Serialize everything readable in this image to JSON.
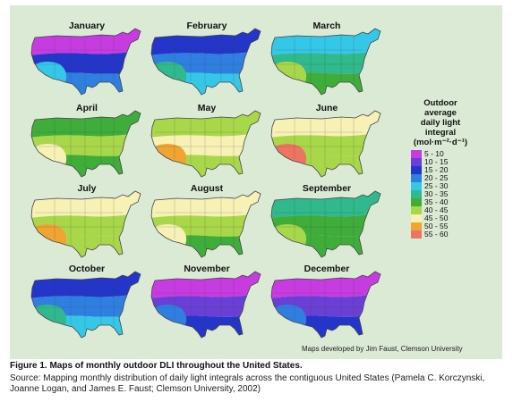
{
  "figure": {
    "label": "Figure 1.",
    "title": "Maps of monthly outdoor DLI throughout the United States.",
    "source": "Source: Mapping monthly distribution of daily light integrals across the contiguous United States (Pamela C. Korczynski, Joanne Logan, and James E. Faust; Clemson University, 2002)",
    "credit": "Maps developed by Jim Faust, Clemson University"
  },
  "legend": {
    "title_lines": [
      "Outdoor",
      "average",
      "daily light",
      "integral",
      "(mol·m⁻²·d⁻¹)"
    ],
    "classes": [
      {
        "range": "5 - 10",
        "color": "#c73ce0"
      },
      {
        "range": "10 - 15",
        "color": "#6a3fd6"
      },
      {
        "range": "15 - 20",
        "color": "#2436c9"
      },
      {
        "range": "20 - 25",
        "color": "#2f7fe0"
      },
      {
        "range": "25 - 30",
        "color": "#35c7e8"
      },
      {
        "range": "30 - 35",
        "color": "#2fb98d"
      },
      {
        "range": "35 - 40",
        "color": "#3ead3a"
      },
      {
        "range": "40 - 45",
        "color": "#a8d84a"
      },
      {
        "range": "45 - 50",
        "color": "#f7f1b5"
      },
      {
        "range": "50 - 55",
        "color": "#f0a431"
      },
      {
        "range": "55 - 60",
        "color": "#ee7462"
      }
    ]
  },
  "months": [
    {
      "name": "January",
      "north": "#c73ce0",
      "mid": "#2436c9",
      "south": "#2f7fe0",
      "southwest": "#35c7e8"
    },
    {
      "name": "February",
      "north": "#2436c9",
      "mid": "#2f7fe0",
      "south": "#35c7e8",
      "southwest": "#2fb98d"
    },
    {
      "name": "March",
      "north": "#35c7e8",
      "mid": "#2fb98d",
      "south": "#3ead3a",
      "southwest": "#a8d84a"
    },
    {
      "name": "April",
      "north": "#3ead3a",
      "mid": "#a8d84a",
      "south": "#3ead3a",
      "southwest": "#f7f1b5"
    },
    {
      "name": "May",
      "north": "#a8d84a",
      "mid": "#f7f1b5",
      "south": "#a8d84a",
      "southwest": "#f0a431"
    },
    {
      "name": "June",
      "north": "#f7f1b5",
      "mid": "#a8d84a",
      "south": "#a8d84a",
      "southwest": "#ee7462"
    },
    {
      "name": "July",
      "north": "#f7f1b5",
      "mid": "#a8d84a",
      "south": "#a8d84a",
      "southwest": "#f0a431"
    },
    {
      "name": "August",
      "north": "#f7f1b5",
      "mid": "#a8d84a",
      "south": "#3ead3a",
      "southwest": "#f7f1b5"
    },
    {
      "name": "September",
      "north": "#2fb98d",
      "mid": "#3ead3a",
      "south": "#3ead3a",
      "southwest": "#a8d84a"
    },
    {
      "name": "October",
      "north": "#2436c9",
      "mid": "#2f7fe0",
      "south": "#35c7e8",
      "southwest": "#2fb98d"
    },
    {
      "name": "November",
      "north": "#c73ce0",
      "mid": "#6a3fd6",
      "south": "#2436c9",
      "southwest": "#2f7fe0"
    },
    {
      "name": "December",
      "north": "#c73ce0",
      "mid": "#6a3fd6",
      "south": "#2436c9",
      "southwest": "#2f7fe0"
    }
  ]
}
